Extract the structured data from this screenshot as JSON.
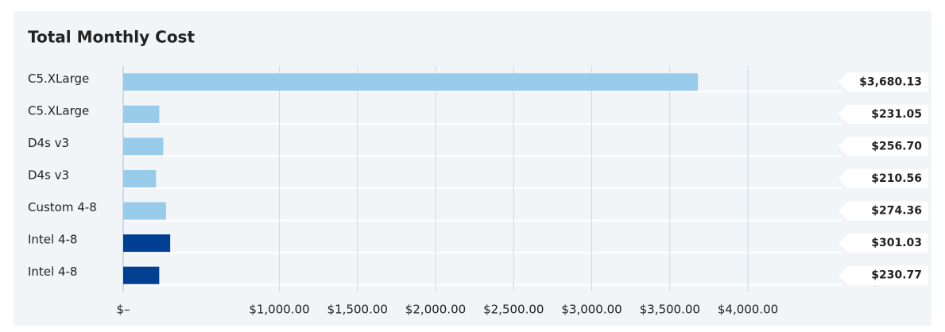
{
  "chart_data": {
    "type": "bar",
    "orientation": "horizontal",
    "title": "Total Monthly Cost",
    "categories": [
      "C5.XLarge",
      "C5.XLarge",
      "D4s v3",
      "D4s v3",
      "Custom 4-8",
      "Intel 4-8",
      "Intel 4-8"
    ],
    "values": [
      3680.13,
      231.05,
      256.7,
      210.56,
      274.36,
      301.03,
      230.77
    ],
    "value_labels": [
      "$3,680.13",
      "$231.05",
      "$256.70",
      "$210.56",
      "$274.36",
      "$301.03",
      "$230.77"
    ],
    "colors": [
      "#99cbeb",
      "#99cbeb",
      "#99cbeb",
      "#99cbeb",
      "#99cbeb",
      "#003f91",
      "#003f91"
    ],
    "xlim": [
      0,
      4300
    ],
    "xticks": [
      {
        "value": 0,
        "label": "$–"
      },
      {
        "value": 1000,
        "label": "$1,000.00"
      },
      {
        "value": 1500,
        "label": "$1,500.00"
      },
      {
        "value": 2000,
        "label": "$2,000.00"
      },
      {
        "value": 2500,
        "label": "$2,500.00"
      },
      {
        "value": 3000,
        "label": "$3,000.00"
      },
      {
        "value": 3500,
        "label": "$3,500.00"
      },
      {
        "value": 4000,
        "label": "$4,000.00"
      }
    ],
    "grid": true
  }
}
